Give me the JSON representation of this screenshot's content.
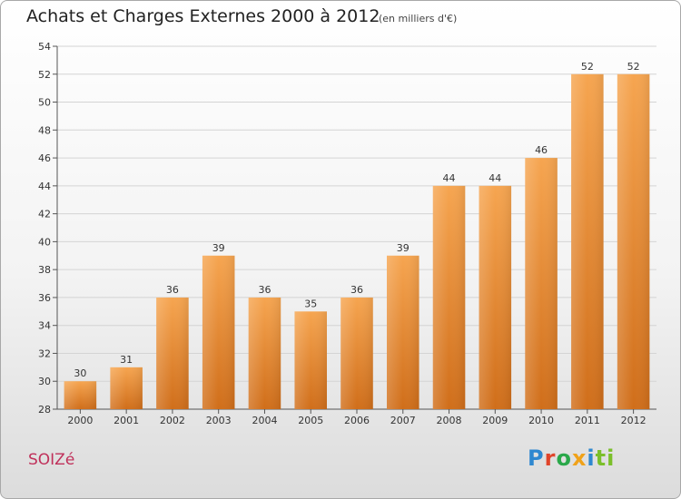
{
  "header": {
    "title": "Achats et Charges Externes 2000 à 2012",
    "subtitle": "(en milliers d'€)"
  },
  "footer": {
    "town": "SOIZé",
    "logo_letters": [
      "P",
      "r",
      "o",
      "x",
      "i",
      "ti"
    ]
  },
  "colors": {
    "bar_top": "#f6a550",
    "bar_bottom": "#d06e1a",
    "grid": "#d4d4d4",
    "town": "#c0305a"
  },
  "chart_data": {
    "type": "bar",
    "title": "Achats et Charges Externes 2000 à 2012",
    "subtitle": "(en milliers d'€)",
    "categories": [
      "2000",
      "2001",
      "2002",
      "2003",
      "2004",
      "2005",
      "2006",
      "2007",
      "2008",
      "2009",
      "2010",
      "2011",
      "2012"
    ],
    "values": [
      30,
      31,
      36,
      39,
      36,
      35,
      36,
      39,
      44,
      44,
      46,
      52,
      52
    ],
    "data_labels": [
      "30",
      "31",
      "36",
      "39",
      "36",
      "35",
      "36",
      "39",
      "44",
      "44",
      "46",
      "52",
      "52"
    ],
    "ylim": [
      28,
      54
    ],
    "yticks": [
      28,
      30,
      32,
      34,
      36,
      38,
      40,
      42,
      44,
      46,
      48,
      50,
      52,
      54
    ],
    "ytick_labels": [
      "28",
      "30",
      "32",
      "34",
      "36",
      "38",
      "40",
      "42",
      "44",
      "46",
      "48",
      "50",
      "52",
      "54"
    ],
    "grid": true,
    "legend": "none",
    "xlabel": "",
    "ylabel": ""
  }
}
